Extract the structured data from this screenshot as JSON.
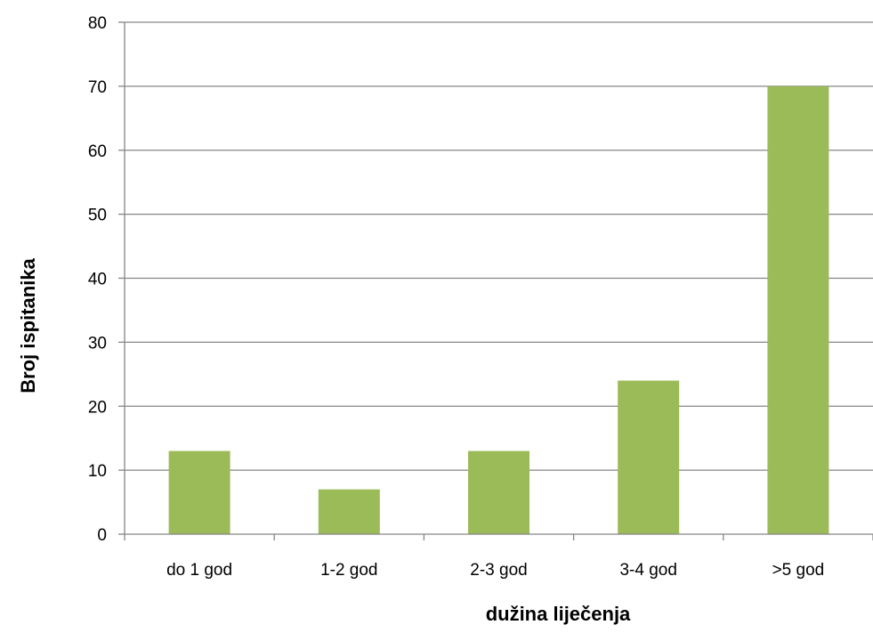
{
  "chart_data": {
    "type": "bar",
    "title": "",
    "xlabel": "dužina liječenja",
    "ylabel": "Broj ispitanika",
    "categories": [
      "do 1 god",
      "1-2 god",
      "2-3 god",
      "3-4 god",
      ">5 god"
    ],
    "values": [
      13,
      7,
      13,
      24,
      70
    ],
    "ylim": [
      0,
      80
    ],
    "yticks": [
      0,
      10,
      20,
      30,
      40,
      50,
      60,
      70,
      80
    ],
    "grid": "horizontal",
    "legend": "none",
    "colors": {
      "bar": "#9BBB59",
      "grid": "#868686",
      "axis": "#868686",
      "text": "#000000"
    }
  }
}
